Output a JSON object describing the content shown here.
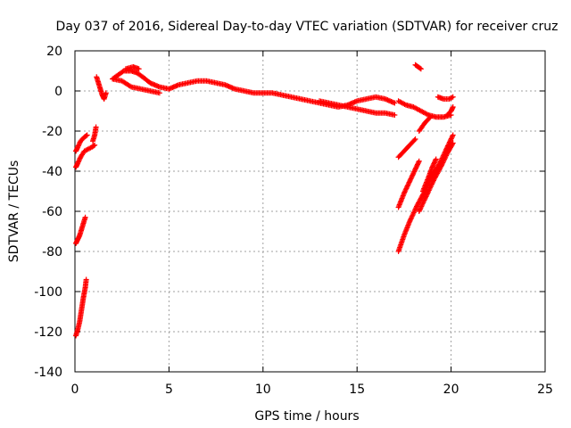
{
  "chart_data": {
    "type": "scatter",
    "title": "Day 037 of 2016, Sidereal Day-to-day VTEC variation (SDTVAR) for receiver cruz",
    "xlabel": "GPS time / hours",
    "ylabel": "SDTVAR / TECUs",
    "xlim": [
      0,
      25
    ],
    "ylim": [
      -140,
      20
    ],
    "xticks": [
      "0",
      "5",
      "10",
      "15",
      "20",
      "25"
    ],
    "yticks": [
      "20",
      "0",
      "-20",
      "-40",
      "-60",
      "-80",
      "-100",
      "-120",
      "-140"
    ],
    "grid": true,
    "marker": "plus",
    "color": "#ff0000",
    "series": [
      {
        "segments": [
          [
            [
              0.05,
              -122
            ],
            [
              0.15,
              -119
            ],
            [
              0.25,
              -115
            ],
            [
              0.35,
              -109
            ],
            [
              0.45,
              -103
            ],
            [
              0.55,
              -98
            ],
            [
              0.6,
              -94
            ]
          ],
          [
            [
              0.05,
              -76
            ],
            [
              0.15,
              -74
            ],
            [
              0.25,
              -72
            ],
            [
              0.35,
              -69
            ],
            [
              0.45,
              -66
            ],
            [
              0.55,
              -63
            ]
          ],
          [
            [
              0.05,
              -38
            ],
            [
              0.15,
              -36
            ],
            [
              0.3,
              -33
            ],
            [
              0.5,
              -30
            ],
            [
              0.7,
              -29
            ],
            [
              0.9,
              -28
            ],
            [
              1.05,
              -27
            ]
          ],
          [
            [
              0.05,
              -30
            ],
            [
              0.15,
              -28
            ],
            [
              0.3,
              -25
            ],
            [
              0.5,
              -23
            ],
            [
              0.65,
              -22
            ]
          ],
          [
            [
              0.95,
              -25
            ],
            [
              1.05,
              -22
            ],
            [
              1.12,
              -18
            ]
          ],
          [
            [
              1.15,
              7
            ],
            [
              1.25,
              4
            ],
            [
              1.35,
              1
            ],
            [
              1.45,
              -2
            ],
            [
              1.55,
              -4
            ],
            [
              1.65,
              -1
            ]
          ],
          [
            [
              2.0,
              6
            ],
            [
              2.3,
              8
            ],
            [
              2.6,
              10
            ],
            [
              3.0,
              10
            ],
            [
              3.3,
              9
            ],
            [
              3.6,
              7
            ],
            [
              4.0,
              4
            ],
            [
              4.5,
              2
            ],
            [
              5.0,
              1
            ],
            [
              5.5,
              3
            ],
            [
              6.0,
              4
            ],
            [
              6.5,
              5
            ],
            [
              7.0,
              5
            ],
            [
              7.5,
              4
            ],
            [
              8.0,
              3
            ],
            [
              8.5,
              1
            ],
            [
              9.0,
              0
            ],
            [
              9.5,
              -1
            ],
            [
              10.0,
              -1
            ],
            [
              10.5,
              -1
            ],
            [
              11.0,
              -2
            ],
            [
              11.5,
              -3
            ],
            [
              12.0,
              -4
            ],
            [
              12.5,
              -5
            ],
            [
              13.0,
              -6
            ],
            [
              13.5,
              -7
            ],
            [
              14.0,
              -8
            ],
            [
              14.5,
              -7
            ],
            [
              15.0,
              -5
            ],
            [
              15.5,
              -4
            ],
            [
              16.0,
              -3
            ],
            [
              16.5,
              -4
            ],
            [
              17.0,
              -6
            ]
          ],
          [
            [
              2.0,
              6
            ],
            [
              2.5,
              5
            ],
            [
              3.0,
              2
            ],
            [
              3.5,
              1
            ],
            [
              4.0,
              0
            ],
            [
              4.5,
              -1
            ]
          ],
          [
            [
              2.7,
              11
            ],
            [
              3.1,
              12
            ],
            [
              3.4,
              11
            ]
          ],
          [
            [
              13.0,
              -5
            ],
            [
              13.5,
              -6
            ],
            [
              14.0,
              -7
            ],
            [
              14.5,
              -8
            ],
            [
              15.0,
              -9
            ],
            [
              15.5,
              -10
            ],
            [
              16.0,
              -11
            ],
            [
              16.5,
              -11
            ],
            [
              17.0,
              -12
            ]
          ],
          [
            [
              17.2,
              -5
            ],
            [
              17.6,
              -7
            ],
            [
              18.0,
              -8
            ],
            [
              18.4,
              -10
            ],
            [
              18.8,
              -12
            ],
            [
              19.2,
              -13
            ],
            [
              19.6,
              -13
            ],
            [
              20.0,
              -12
            ]
          ],
          [
            [
              18.3,
              -20
            ],
            [
              18.6,
              -16
            ],
            [
              18.9,
              -13
            ]
          ],
          [
            [
              17.2,
              -33
            ],
            [
              17.5,
              -30
            ],
            [
              17.8,
              -27
            ],
            [
              18.1,
              -24
            ]
          ],
          [
            [
              18.1,
              13
            ],
            [
              18.25,
              12
            ],
            [
              18.4,
              11
            ]
          ],
          [
            [
              19.3,
              -3
            ],
            [
              19.6,
              -4
            ],
            [
              19.9,
              -4
            ],
            [
              20.1,
              -3
            ]
          ],
          [
            [
              19.8,
              -12
            ],
            [
              20.0,
              -10
            ],
            [
              20.1,
              -8
            ]
          ],
          [
            [
              17.2,
              -80
            ],
            [
              17.5,
              -72
            ],
            [
              17.8,
              -65
            ],
            [
              18.2,
              -57
            ],
            [
              18.6,
              -50
            ],
            [
              19.0,
              -42
            ],
            [
              19.4,
              -36
            ],
            [
              19.8,
              -28
            ],
            [
              20.1,
              -22
            ]
          ],
          [
            [
              17.2,
              -58
            ],
            [
              17.5,
              -51
            ],
            [
              17.8,
              -45
            ],
            [
              18.1,
              -39
            ],
            [
              18.3,
              -35
            ]
          ],
          [
            [
              18.3,
              -60
            ],
            [
              18.7,
              -52
            ],
            [
              19.1,
              -44
            ],
            [
              19.5,
              -37
            ],
            [
              19.8,
              -31
            ],
            [
              20.1,
              -26
            ]
          ],
          [
            [
              18.5,
              -50
            ],
            [
              18.8,
              -43
            ],
            [
              19.0,
              -38
            ],
            [
              19.2,
              -34
            ]
          ]
        ]
      }
    ]
  }
}
